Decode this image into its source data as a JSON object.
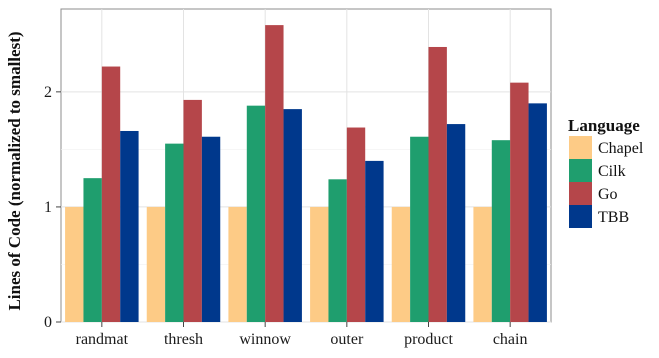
{
  "chart_data": {
    "type": "bar",
    "ylabel": "Lines of Code (normalized to smallest)",
    "xlabel": "",
    "categories": [
      "randmat",
      "thresh",
      "winnow",
      "outer",
      "product",
      "chain"
    ],
    "ylim": [
      0,
      2.72
    ],
    "yticks": [
      0,
      1,
      2
    ],
    "grid": true,
    "legend": {
      "title": "Language",
      "placement": "right"
    },
    "series": [
      {
        "name": "Chapel",
        "color": "#FDCB86",
        "values": [
          1,
          1,
          1,
          1,
          1,
          1
        ]
      },
      {
        "name": "Cilk",
        "color": "#1F9E6E",
        "values": [
          1.25,
          1.55,
          1.88,
          1.24,
          1.61,
          1.58
        ]
      },
      {
        "name": "Go",
        "color": "#B5464A",
        "values": [
          2.22,
          1.93,
          2.58,
          1.69,
          2.39,
          2.08
        ]
      },
      {
        "name": "TBB",
        "color": "#00388C",
        "values": [
          1.66,
          1.61,
          1.85,
          1.4,
          1.72,
          1.9
        ]
      }
    ]
  }
}
